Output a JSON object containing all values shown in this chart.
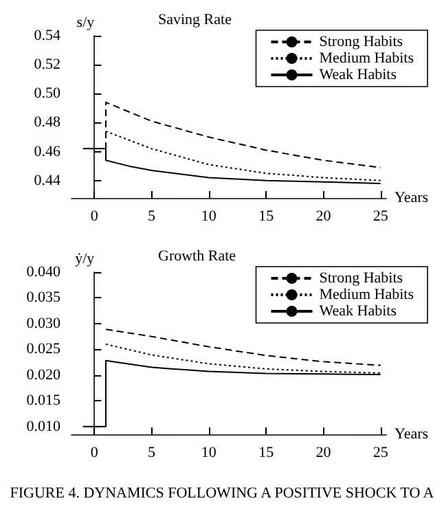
{
  "chart_data": [
    {
      "type": "line",
      "title": "Saving Rate",
      "ylabel": "s/y",
      "xlabel": "Years",
      "xlim": [
        -2,
        25.5
      ],
      "xticks": [
        0,
        5,
        10,
        15,
        20,
        25
      ],
      "ylim": [
        0.428,
        0.54
      ],
      "yticks": [
        0.44,
        0.46,
        0.48,
        {
          "value": 0.5,
          "label": "0.50"
        },
        0.52,
        0.54
      ],
      "grid": false,
      "legend": "top right",
      "marker": "none",
      "series": [
        {
          "name": "Strong Habits",
          "color": "#000000",
          "line_style": "dashed",
          "x": [
            1,
            1,
            5,
            10,
            15,
            20,
            25
          ],
          "values": [
            0.454,
            0.494,
            0.481,
            0.47,
            0.461,
            0.454,
            0.449
          ]
        },
        {
          "name": "Medium Habits",
          "color": "#000000",
          "line_style": "dotted",
          "x": [
            1,
            5,
            10,
            15,
            20,
            25
          ],
          "values": [
            0.474,
            0.462,
            0.451,
            0.445,
            0.442,
            0.44
          ]
        },
        {
          "name": "Weak Habits",
          "color": "#000000",
          "line_style": "solid",
          "x": [
            -1,
            1,
            1,
            3,
            5,
            10,
            15,
            20,
            25
          ],
          "values": [
            0.462,
            0.462,
            0.454,
            0.45,
            0.447,
            0.442,
            0.44,
            0.439,
            0.438
          ]
        }
      ]
    },
    {
      "type": "line",
      "title": "Growth Rate",
      "ylabel": "ẏ/y",
      "xlabel": "Years",
      "xlim": [
        -2,
        25.5
      ],
      "xticks": [
        0,
        5,
        10,
        15,
        20,
        25
      ],
      "ylim": [
        0.0085,
        0.04
      ],
      "yticks": [
        {
          "value": 0.01,
          "label": "0.010"
        },
        0.015,
        {
          "value": 0.02,
          "label": "0.020"
        },
        0.025,
        {
          "value": 0.03,
          "label": "0.030"
        },
        0.035,
        {
          "value": 0.04,
          "label": "0.040"
        }
      ],
      "grid": false,
      "legend": "top right",
      "marker": "none",
      "annotations": [
        "FIGURE 4. DYNAMICS FOLLOWING A POSITIVE SHOCK TO A"
      ],
      "series": [
        {
          "name": "Strong Habits",
          "color": "#000000",
          "line_style": "dashed",
          "x": [
            1,
            5,
            10,
            15,
            20,
            25
          ],
          "values": [
            0.0289,
            0.0275,
            0.0255,
            0.0238,
            0.0226,
            0.0219
          ]
        },
        {
          "name": "Medium Habits",
          "color": "#000000",
          "line_style": "dotted",
          "x": [
            1,
            5,
            10,
            15,
            20,
            25
          ],
          "values": [
            0.026,
            0.0239,
            0.0222,
            0.0212,
            0.0207,
            0.0204
          ]
        },
        {
          "name": "Weak Habits",
          "color": "#000000",
          "line_style": "solid",
          "x": [
            -1,
            1,
            1,
            5,
            10,
            15,
            20,
            25
          ],
          "values": [
            0.01,
            0.01,
            0.0228,
            0.0215,
            0.0207,
            0.0203,
            0.0202,
            0.0201
          ]
        }
      ]
    }
  ]
}
